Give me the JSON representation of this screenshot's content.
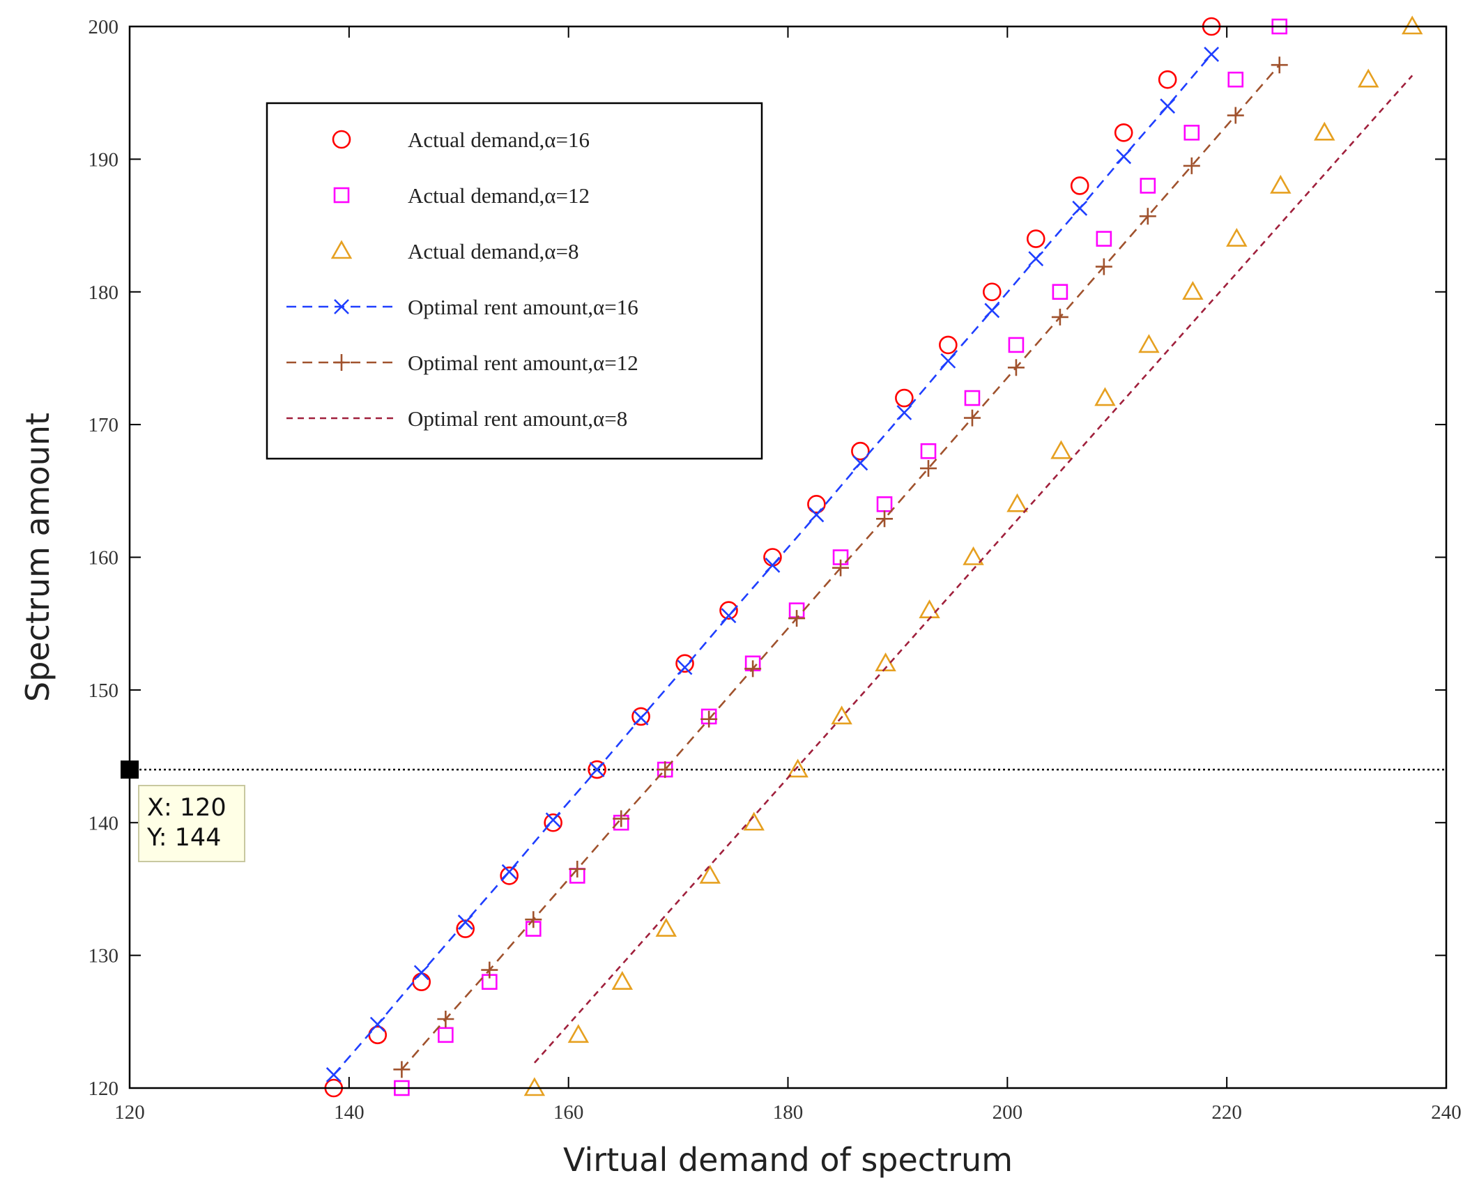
{
  "chart_data": {
    "type": "scatter",
    "title": "",
    "xlabel": "Virtual demand of spectrum",
    "ylabel": "Spectrum amount",
    "xlim": [
      120,
      240
    ],
    "ylim": [
      120,
      200
    ],
    "xticks": [
      120,
      140,
      160,
      180,
      200,
      220,
      240
    ],
    "yticks": [
      120,
      130,
      140,
      150,
      160,
      170,
      180,
      190,
      200
    ],
    "grid": false,
    "legend_position": "top-left",
    "series": [
      {
        "name": "Actual demand,α=16",
        "kind": "markers",
        "marker": "circle",
        "color": "#ff0000",
        "x": [
          138.6,
          142.6,
          146.6,
          150.6,
          154.6,
          158.6,
          162.6,
          166.6,
          170.6,
          174.6,
          178.6,
          182.6,
          186.6,
          190.6,
          194.6,
          198.6,
          202.6,
          206.6,
          210.6,
          214.6,
          218.6
        ],
        "y": [
          120,
          124,
          128,
          132,
          136,
          140,
          144,
          148,
          152,
          156,
          160,
          164,
          168,
          172,
          176,
          180,
          184,
          188,
          192,
          196,
          200
        ]
      },
      {
        "name": "Actual demand,α=12",
        "kind": "markers",
        "marker": "square",
        "color": "#ff00ff",
        "x": [
          144.8,
          148.8,
          152.8,
          156.8,
          160.8,
          164.8,
          168.8,
          172.8,
          176.8,
          180.8,
          184.8,
          188.8,
          192.8,
          196.8,
          200.8,
          204.8,
          208.8,
          212.8,
          216.8,
          220.8,
          224.8
        ],
        "y": [
          120,
          124,
          128,
          132,
          136,
          140,
          144,
          148,
          152,
          156,
          160,
          164,
          168,
          172,
          176,
          180,
          184,
          188,
          192,
          196,
          200
        ]
      },
      {
        "name": "Actual demand,α=8",
        "kind": "markers",
        "marker": "triangle",
        "color": "#e6a020",
        "x": [
          156.9,
          160.9,
          164.9,
          168.9,
          172.9,
          176.9,
          180.9,
          184.9,
          188.9,
          192.9,
          196.9,
          200.9,
          204.9,
          208.9,
          212.9,
          216.9,
          220.9,
          224.9,
          228.9,
          232.9,
          236.9
        ],
        "y": [
          120,
          124,
          128,
          132,
          136,
          140,
          144,
          148,
          152,
          156,
          160,
          164,
          168,
          172,
          176,
          180,
          184,
          188,
          192,
          196,
          200
        ]
      },
      {
        "name": "Optimal rent amount,α=16",
        "kind": "line-markers",
        "marker": "x",
        "dash": "long",
        "color": "#1f3fff",
        "x": [
          138.6,
          142.6,
          146.6,
          150.6,
          154.6,
          158.6,
          162.6,
          166.6,
          170.6,
          174.6,
          178.6,
          182.6,
          186.6,
          190.6,
          194.6,
          198.6,
          202.6,
          206.6,
          210.6,
          214.6,
          218.6
        ],
        "y": [
          121.0,
          124.8,
          128.7,
          132.5,
          136.3,
          140.2,
          144.0,
          147.9,
          151.7,
          155.6,
          159.4,
          163.2,
          167.1,
          170.9,
          174.8,
          178.6,
          182.5,
          186.3,
          190.2,
          194.0,
          197.9
        ]
      },
      {
        "name": "Optimal rent amount,α=12",
        "kind": "line-markers",
        "marker": "plus",
        "dash": "long",
        "color": "#a0522d",
        "x": [
          144.8,
          148.8,
          152.8,
          156.8,
          160.8,
          164.8,
          168.8,
          172.8,
          176.8,
          180.8,
          184.8,
          188.8,
          192.8,
          196.8,
          200.8,
          204.8,
          208.8,
          212.8,
          216.8,
          220.8,
          224.8
        ],
        "y": [
          121.4,
          125.2,
          128.9,
          132.7,
          136.5,
          140.3,
          144.0,
          147.8,
          151.6,
          155.4,
          159.2,
          162.9,
          166.7,
          170.5,
          174.3,
          178.1,
          181.9,
          185.7,
          189.5,
          193.3,
          197.1
        ]
      },
      {
        "name": "Optimal rent amount,α=8",
        "kind": "line",
        "marker": "none",
        "dash": "short",
        "color": "#a0203c",
        "x": [
          156.9,
          236.9
        ],
        "y": [
          121.9,
          196.3
        ]
      }
    ],
    "reference_line": {
      "kind": "horizontal",
      "y": 144,
      "style": "dotted",
      "color": "#000000"
    },
    "data_tip": {
      "x_text": "X: 120",
      "y_text": "Y: 144",
      "x": 120,
      "y": 144
    }
  }
}
